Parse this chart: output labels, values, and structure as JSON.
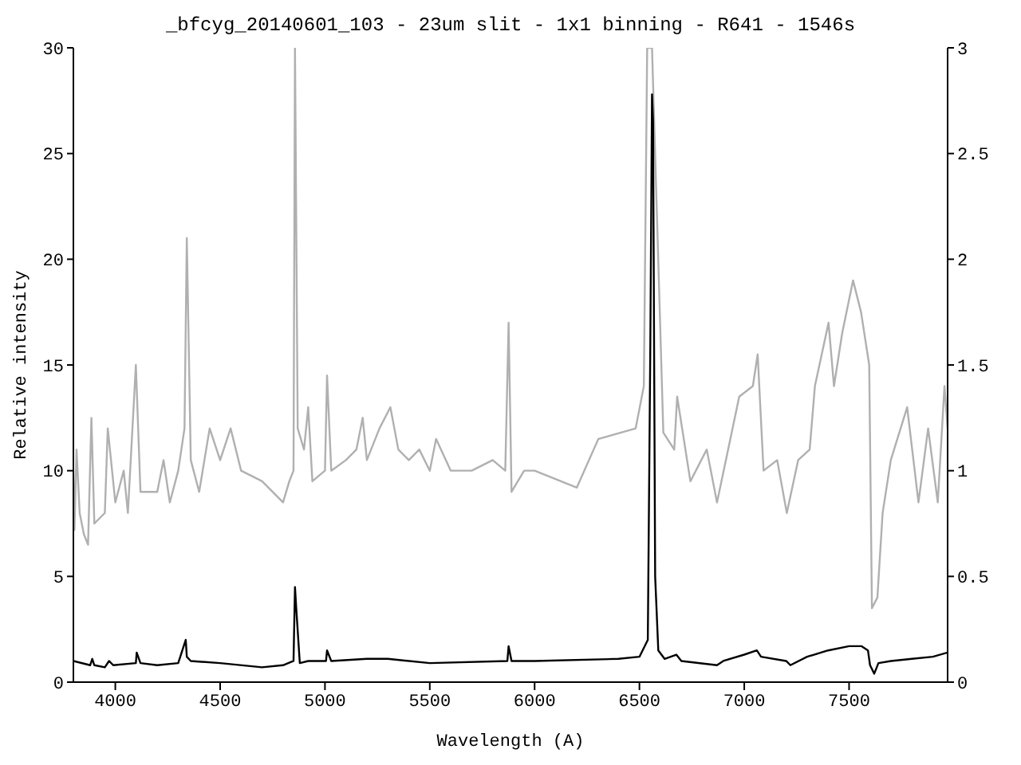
{
  "chart_data": {
    "type": "line",
    "title": "_bfcyg_20140601_103 - 23um slit - 1x1 binning - R641 - 1546s",
    "xlabel": "Wavelength (A)",
    "ylabel": "Relative intensity",
    "xlim": [
      3800,
      7970
    ],
    "xticks": [
      4000,
      4500,
      5000,
      5500,
      6000,
      6500,
      7000,
      7500
    ],
    "ylim": [
      0,
      30
    ],
    "yticks": [
      0,
      5,
      10,
      15,
      20,
      25,
      30
    ],
    "y2lim": [
      0,
      3
    ],
    "y2ticks": [
      0,
      0.5,
      1,
      1.5,
      2,
      2.5,
      3
    ],
    "marker": "none",
    "line_style": "solid",
    "series": [
      {
        "color": "#b0b0b0",
        "axis": "y2",
        "x": [
          3800,
          3805,
          3815,
          3830,
          3850,
          3870,
          3886,
          3900,
          3950,
          3964,
          4000,
          4040,
          4060,
          4098,
          4120,
          4200,
          4230,
          4260,
          4300,
          4330,
          4341,
          4360,
          4400,
          4450,
          4500,
          4550,
          4600,
          4700,
          4800,
          4830,
          4850,
          4857,
          4870,
          4900,
          4920,
          4940,
          5000,
          5010,
          5030,
          5100,
          5150,
          5180,
          5200,
          5260,
          5312,
          5350,
          5400,
          5450,
          5500,
          5530,
          5600,
          5700,
          5800,
          5860,
          5876,
          5890,
          5950,
          6000,
          6201,
          6304,
          6482,
          6521,
          6537,
          6560,
          6614,
          6666,
          6680,
          6743,
          6821,
          6870,
          6976,
          7041,
          7064,
          7092,
          7157,
          7203,
          7257,
          7312,
          7337,
          7402,
          7428,
          7467,
          7519,
          7557,
          7596,
          7609,
          7635,
          7660,
          7699,
          7777,
          7831,
          7877,
          7923,
          7955,
          7970
        ],
        "values": [
          1.0,
          0.72,
          1.1,
          0.8,
          0.7,
          0.65,
          1.25,
          0.75,
          0.8,
          1.2,
          0.85,
          1.0,
          0.8,
          1.5,
          0.9,
          0.9,
          1.05,
          0.85,
          1.0,
          1.2,
          2.1,
          1.05,
          0.9,
          1.2,
          1.05,
          1.2,
          1.0,
          0.95,
          0.85,
          0.95,
          1.0,
          3.0,
          1.2,
          1.1,
          1.3,
          0.95,
          1.0,
          1.45,
          1.0,
          1.05,
          1.1,
          1.25,
          1.05,
          1.2,
          1.3,
          1.1,
          1.05,
          1.1,
          1.0,
          1.15,
          1.0,
          1.0,
          1.05,
          1.0,
          1.7,
          0.9,
          1.0,
          1.0,
          0.92,
          1.15,
          1.2,
          1.4,
          3.0,
          3.0,
          1.18,
          1.1,
          1.35,
          0.95,
          1.1,
          0.85,
          1.35,
          1.4,
          1.55,
          1.0,
          1.05,
          0.8,
          1.05,
          1.1,
          1.4,
          1.7,
          1.4,
          1.65,
          1.9,
          1.75,
          1.5,
          0.35,
          0.4,
          0.8,
          1.05,
          1.3,
          0.85,
          1.2,
          0.85,
          1.4,
          1.2
        ]
      },
      {
        "color": "#000000",
        "axis": "y",
        "x": [
          3800,
          3880,
          3890,
          3900,
          3950,
          3970,
          3990,
          4098,
          4102,
          4120,
          4200,
          4300,
          4336,
          4341,
          4360,
          4500,
          4700,
          4800,
          4850,
          4857,
          4863,
          4880,
          4920,
          5005,
          5010,
          5030,
          5200,
          5300,
          5500,
          5870,
          5876,
          5890,
          6000,
          6400,
          6500,
          6540,
          6552,
          6560,
          6565,
          6575,
          6590,
          6620,
          6676,
          6700,
          6870,
          6900,
          7000,
          7060,
          7080,
          7200,
          7220,
          7300,
          7400,
          7500,
          7560,
          7590,
          7600,
          7620,
          7640,
          7700,
          7800,
          7900,
          7970
        ],
        "values": [
          1.0,
          0.8,
          1.1,
          0.8,
          0.7,
          1.0,
          0.8,
          0.9,
          1.4,
          0.9,
          0.8,
          0.9,
          2.0,
          1.2,
          1.0,
          0.9,
          0.7,
          0.8,
          1.0,
          4.5,
          3.5,
          0.9,
          1.0,
          1.0,
          1.5,
          1.0,
          1.1,
          1.1,
          0.9,
          1.0,
          1.7,
          1.0,
          1.0,
          1.1,
          1.2,
          2.0,
          16,
          27.8,
          26.5,
          5,
          1.5,
          1.1,
          1.3,
          1.0,
          0.8,
          1.0,
          1.3,
          1.5,
          1.2,
          1.0,
          0.8,
          1.2,
          1.5,
          1.7,
          1.7,
          1.5,
          0.8,
          0.4,
          0.9,
          1.0,
          1.1,
          1.2,
          1.4
        ]
      }
    ]
  }
}
